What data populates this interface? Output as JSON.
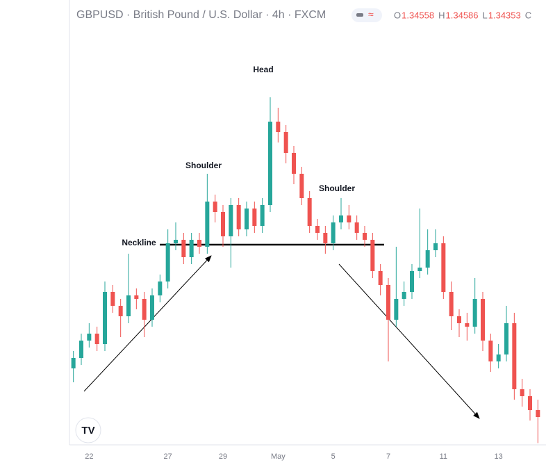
{
  "chart_data": {
    "type": "candlestick",
    "title": "GBPUSD · British Pound / U.S. Dollar · 4h · FXCM",
    "ohlc_header": [
      "O",
      "1.34558",
      "H",
      "1.34586",
      "L",
      "1.34353",
      "C"
    ],
    "categories": [
      null,
      null,
      "22",
      null,
      null,
      null,
      null,
      null,
      null,
      null,
      null,
      null,
      "27",
      null,
      null,
      null,
      null,
      null,
      null,
      "29",
      null,
      null,
      null,
      null,
      null,
      null,
      "May",
      null,
      null,
      null,
      null,
      null,
      null,
      "5",
      null,
      null,
      null,
      null,
      null,
      null,
      "7",
      null,
      null,
      null,
      null,
      null,
      null,
      "11",
      null,
      null,
      null,
      null,
      null,
      null,
      "13",
      null,
      null,
      null,
      null,
      null
    ],
    "open": [
      1.3478,
      1.3484,
      1.3494,
      1.3498,
      1.3492,
      1.3522,
      1.3514,
      1.3508,
      1.352,
      1.3518,
      1.3506,
      1.352,
      1.3528,
      1.355,
      1.3552,
      1.3542,
      1.3552,
      1.3548,
      1.3574,
      1.3568,
      1.3554,
      1.3572,
      1.3558,
      1.357,
      1.356,
      1.3572,
      1.362,
      1.3614,
      1.3602,
      1.359,
      1.3576,
      1.356,
      1.3556,
      1.355,
      1.3562,
      1.3566,
      1.3562,
      1.3556,
      1.3552,
      1.3534,
      1.3526,
      1.3506,
      1.3518,
      1.3522,
      1.3534,
      1.3536,
      1.3546,
      1.355,
      1.3522,
      1.3508,
      1.3504,
      1.3502,
      1.3518,
      1.3494,
      1.3482,
      1.3486,
      1.3504,
      1.3466,
      1.3462,
      1.3454
    ],
    "high": [
      1.3488,
      1.3498,
      1.3504,
      1.3502,
      1.3528,
      1.3526,
      1.3518,
      1.3544,
      1.3524,
      1.3522,
      1.3524,
      1.3532,
      1.3558,
      1.3562,
      1.3556,
      1.3556,
      1.3556,
      1.359,
      1.3578,
      1.3572,
      1.3576,
      1.3576,
      1.3574,
      1.3574,
      1.3576,
      1.3634,
      1.3628,
      1.3618,
      1.3606,
      1.3594,
      1.358,
      1.3564,
      1.356,
      1.3566,
      1.3576,
      1.3572,
      1.3566,
      1.356,
      1.3556,
      1.3538,
      1.353,
      1.3548,
      1.3528,
      1.3538,
      1.357,
      1.3558,
      1.3558,
      1.3554,
      1.3528,
      1.3512,
      1.351,
      1.353,
      1.3522,
      1.3498,
      1.3492,
      1.3514,
      1.351,
      1.3472,
      1.3466,
      1.346
    ],
    "low": [
      1.347,
      1.348,
      1.349,
      1.3488,
      1.3488,
      1.351,
      1.3496,
      1.3504,
      1.3512,
      1.3496,
      1.3502,
      1.3516,
      1.3524,
      1.3546,
      1.3538,
      1.3538,
      1.3544,
      1.3544,
      1.3562,
      1.3548,
      1.3536,
      1.3554,
      1.3554,
      1.3556,
      1.3556,
      1.3568,
      1.3608,
      1.3596,
      1.3584,
      1.3572,
      1.3556,
      1.3552,
      1.3544,
      1.3546,
      1.3558,
      1.3558,
      1.3552,
      1.3548,
      1.353,
      1.352,
      1.3482,
      1.3502,
      1.3514,
      1.3518,
      1.353,
      1.3532,
      1.3542,
      1.3518,
      1.35,
      1.3496,
      1.3494,
      1.3498,
      1.3488,
      1.3476,
      1.3478,
      1.3482,
      1.346,
      1.3456,
      1.3448,
      1.3435
    ],
    "close": [
      1.3484,
      1.3494,
      1.3498,
      1.3492,
      1.3522,
      1.3514,
      1.3508,
      1.352,
      1.3518,
      1.3506,
      1.352,
      1.3528,
      1.355,
      1.3552,
      1.3542,
      1.3552,
      1.3548,
      1.3574,
      1.3568,
      1.3554,
      1.3572,
      1.3558,
      1.357,
      1.356,
      1.3572,
      1.362,
      1.3614,
      1.3602,
      1.359,
      1.3576,
      1.356,
      1.3556,
      1.355,
      1.3562,
      1.3566,
      1.3562,
      1.3556,
      1.3552,
      1.3534,
      1.3526,
      1.3506,
      1.3518,
      1.3522,
      1.3534,
      1.3536,
      1.3546,
      1.355,
      1.3522,
      1.3508,
      1.3504,
      1.3502,
      1.3518,
      1.3494,
      1.3482,
      1.3486,
      1.3504,
      1.3466,
      1.3462,
      1.3454,
      1.345
    ],
    "up_color": "#26a69a",
    "down_color": "#ef5350",
    "ylim": [
      1.3434,
      1.3674
    ],
    "annotations": [
      "Head",
      "Shoulder",
      "Shoulder",
      "Neckline"
    ]
  }
}
